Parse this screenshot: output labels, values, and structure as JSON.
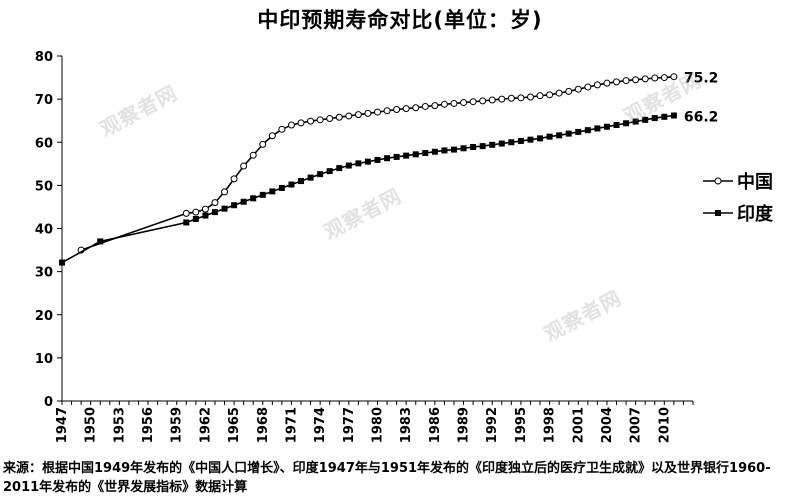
{
  "chart_data": {
    "type": "line",
    "title": "中印预期寿命对比(单位：岁)",
    "xlabel": "",
    "ylabel": "",
    "ylim": [
      0,
      80
    ],
    "yticks": [
      0,
      10,
      20,
      30,
      40,
      50,
      60,
      70,
      80
    ],
    "xlim": [
      1947,
      2013
    ],
    "xticks": [
      1947,
      1950,
      1953,
      1956,
      1959,
      1962,
      1965,
      1968,
      1971,
      1974,
      1977,
      1980,
      1983,
      1986,
      1989,
      1992,
      1995,
      1998,
      2001,
      2004,
      2007,
      2010
    ],
    "legend_position": "right",
    "grid": false,
    "series": [
      {
        "name": "中国",
        "marker": "open-circle",
        "end_label": "75.2",
        "x": [
          1949,
          1960,
          1961,
          1962,
          1963,
          1964,
          1965,
          1966,
          1967,
          1968,
          1969,
          1970,
          1971,
          1972,
          1973,
          1974,
          1975,
          1976,
          1977,
          1978,
          1979,
          1980,
          1981,
          1982,
          1983,
          1984,
          1985,
          1986,
          1987,
          1988,
          1989,
          1990,
          1991,
          1992,
          1993,
          1994,
          1995,
          1996,
          1997,
          1998,
          1999,
          2000,
          2001,
          2002,
          2003,
          2004,
          2005,
          2006,
          2007,
          2008,
          2009,
          2010,
          2011
        ],
        "y": [
          35.0,
          43.5,
          43.8,
          44.5,
          46.0,
          48.5,
          51.5,
          54.5,
          57.0,
          59.5,
          61.5,
          63.0,
          64.0,
          64.5,
          64.9,
          65.2,
          65.5,
          65.8,
          66.1,
          66.4,
          66.7,
          67.0,
          67.3,
          67.6,
          67.8,
          68.0,
          68.3,
          68.5,
          68.8,
          69.0,
          69.2,
          69.4,
          69.6,
          69.8,
          70.0,
          70.2,
          70.3,
          70.5,
          70.8,
          71.0,
          71.4,
          71.8,
          72.3,
          72.8,
          73.3,
          73.7,
          74.0,
          74.3,
          74.5,
          74.7,
          74.9,
          75.0,
          75.2
        ]
      },
      {
        "name": "印度",
        "marker": "filled-square",
        "end_label": "66.2",
        "x": [
          1947,
          1951,
          1960,
          1961,
          1962,
          1963,
          1964,
          1965,
          1966,
          1967,
          1968,
          1969,
          1970,
          1971,
          1972,
          1973,
          1974,
          1975,
          1976,
          1977,
          1978,
          1979,
          1980,
          1981,
          1982,
          1983,
          1984,
          1985,
          1986,
          1987,
          1988,
          1989,
          1990,
          1991,
          1992,
          1993,
          1994,
          1995,
          1996,
          1997,
          1998,
          1999,
          2000,
          2001,
          2002,
          2003,
          2004,
          2005,
          2006,
          2007,
          2008,
          2009,
          2010,
          2011
        ],
        "y": [
          32.1,
          37.0,
          41.4,
          42.2,
          43.0,
          43.8,
          44.6,
          45.4,
          46.2,
          47.0,
          47.8,
          48.6,
          49.4,
          50.2,
          51.0,
          51.8,
          52.6,
          53.3,
          54.0,
          54.6,
          55.1,
          55.5,
          55.9,
          56.3,
          56.6,
          56.9,
          57.2,
          57.5,
          57.8,
          58.1,
          58.3,
          58.6,
          58.9,
          59.1,
          59.4,
          59.7,
          60.0,
          60.3,
          60.6,
          60.9,
          61.3,
          61.6,
          62.0,
          62.4,
          62.8,
          63.2,
          63.6,
          64.0,
          64.4,
          64.8,
          65.2,
          65.6,
          65.9,
          66.2
        ]
      }
    ]
  },
  "source_note": "来源：根据中国1949年发布的《中国人口增长》、印度1947年与1951年发布的《印度独立后的医疗卫生成就》以及世界银行1960-2011年发布的《世界发展指标》数据计算",
  "watermark_text": "观察者网",
  "colors": {
    "line": "#000000",
    "axis": "#000000",
    "watermark": "#969696"
  }
}
